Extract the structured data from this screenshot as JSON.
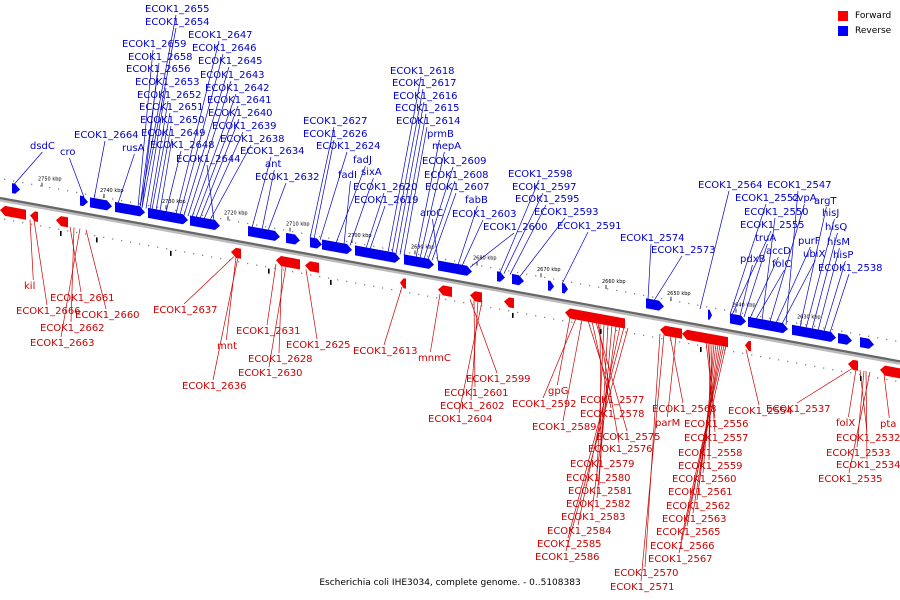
{
  "legend": [
    {
      "label": "Forward",
      "color": "#ff0000"
    },
    {
      "label": "Reverse",
      "color": "#0000ff"
    }
  ],
  "caption": "Escherichia coli IHE3034, complete genome. - 0..5108383",
  "ticks": [
    "2750 kbp",
    "2740 kbp",
    "2730 kbp",
    "2720 kbp",
    "2710 kbp",
    "2700 kbp",
    "2690 kbp",
    "2680 kbp",
    "2670 kbp",
    "2660 kbp",
    "2650 kbp",
    "2640 kbp",
    "2630 kbp"
  ],
  "reverse_labels": [
    "dsdC",
    "cro",
    "ECOK1_2664",
    "rusA",
    "ECOK1_2655",
    "ECOK1_2654",
    "ECOK1_2659",
    "ECOK1_2658",
    "ECOK1_2656",
    "ECOK1_2653",
    "ECOK1_2652",
    "ECOK1_2651",
    "ECOK1_2650",
    "ECOK1_2649",
    "ECOK1_2648",
    "ECOK1_2647",
    "ECOK1_2646",
    "ECOK1_2645",
    "ECOK1_2643",
    "ECOK1_2642",
    "ECOK1_2641",
    "ECOK1_2640",
    "ECOK1_2639",
    "ECOK1_2638",
    "ECOK1_2644",
    "ECOK1_2634",
    "ant",
    "ECOK1_2632",
    "ECOK1_2627",
    "ECOK1_2626",
    "ECOK1_2624",
    "fadJ",
    "fadI",
    "sixA",
    "ECOK1_2620",
    "ECOK1_2619",
    "ECOK1_2618",
    "ECOK1_2617",
    "ECOK1_2616",
    "ECOK1_2615",
    "ECOK1_2614",
    "prmB",
    "mepA",
    "ECOK1_2609",
    "ECOK1_2608",
    "ECOK1_2607",
    "aroC",
    "fabB",
    "ECOK1_2603",
    "ECOK1_2600",
    "ECOK1_2598",
    "ECOK1_2597",
    "ECOK1_2595",
    "ECOK1_2593",
    "ECOK1_2591",
    "ECOK1_2574",
    "ECOK1_2573",
    "ECOK1_2564",
    "ECOK1_2552",
    "ECOK1_2555",
    "pdxB",
    "truA",
    "accD",
    "folC",
    "ECOK1_2550",
    "cvpA",
    "purF",
    "ubiX",
    "ECOK1_2547",
    "argT",
    "hisJ",
    "hisQ",
    "hisM",
    "hisP",
    "ECOK1_2538"
  ],
  "forward_labels": [
    "kil",
    "ECOK1_2666",
    "ECOK1_2661",
    "ECOK1_2662",
    "ECOK1_2663",
    "ECOK1_2660",
    "ECOK1_2637",
    "mnt",
    "ECOK1_2636",
    "ECOK1_2631",
    "ECOK1_2628",
    "ECOK1_2630",
    "ECOK1_2625",
    "ECOK1_2613",
    "mnmC",
    "ECOK1_2599",
    "ECOK1_2601",
    "ECOK1_2602",
    "ECOK1_2604",
    "gpG",
    "ECOK1_2592",
    "ECOK1_2589",
    "ECOK1_2577",
    "ECOK1_2578",
    "ECOK1_2575",
    "ECOK1_2576",
    "ECOK1_2579",
    "ECOK1_2580",
    "ECOK1_2581",
    "ECOK1_2582",
    "ECOK1_2583",
    "ECOK1_2584",
    "ECOK1_2585",
    "ECOK1_2586",
    "ECOK1_2568",
    "parM",
    "ECOK1_2556",
    "ECOK1_2557",
    "ECOK1_2558",
    "ECOK1_2559",
    "ECOK1_2560",
    "ECOK1_2561",
    "ECOK1_2562",
    "ECOK1_2563",
    "ECOK1_2565",
    "ECOK1_2566",
    "ECOK1_2567",
    "ECOK1_2570",
    "ECOK1_2571",
    "ECOK1_2554",
    "ECOK1_2537",
    "folX",
    "ECOK1_2532",
    "ECOK1_2533",
    "ECOK1_2534",
    "ECOK1_2535",
    "pta"
  ]
}
